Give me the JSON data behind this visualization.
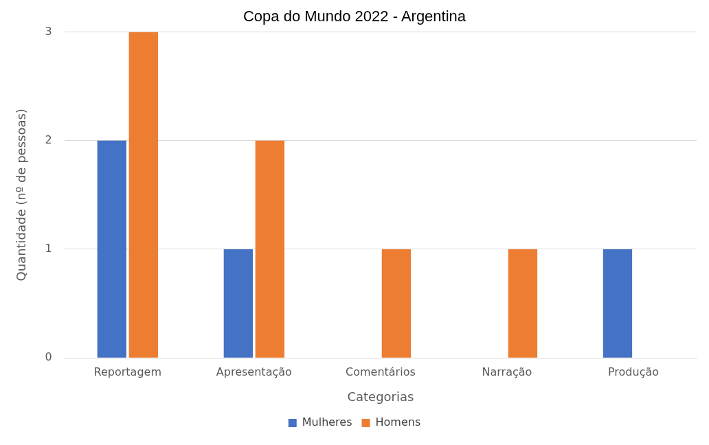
{
  "chart_data": {
    "type": "bar",
    "title": "Copa do Mundo 2022 - Argentina",
    "xlabel": "Categorias",
    "ylabel": "Quantidade (nº de pessoas)",
    "categories": [
      "Reportagem",
      "Apresentação",
      "Comentários",
      "Narração",
      "Produção"
    ],
    "series": [
      {
        "name": "Mulheres",
        "color": "#4472c4",
        "values": [
          2,
          1,
          0,
          0,
          1
        ]
      },
      {
        "name": "Homens",
        "color": "#ed7d31",
        "values": [
          3,
          2,
          1,
          1,
          0
        ]
      }
    ],
    "ylim": [
      0,
      3
    ],
    "yticks": [
      0,
      1,
      2,
      3
    ],
    "grid": "y",
    "legend": "bottom"
  }
}
